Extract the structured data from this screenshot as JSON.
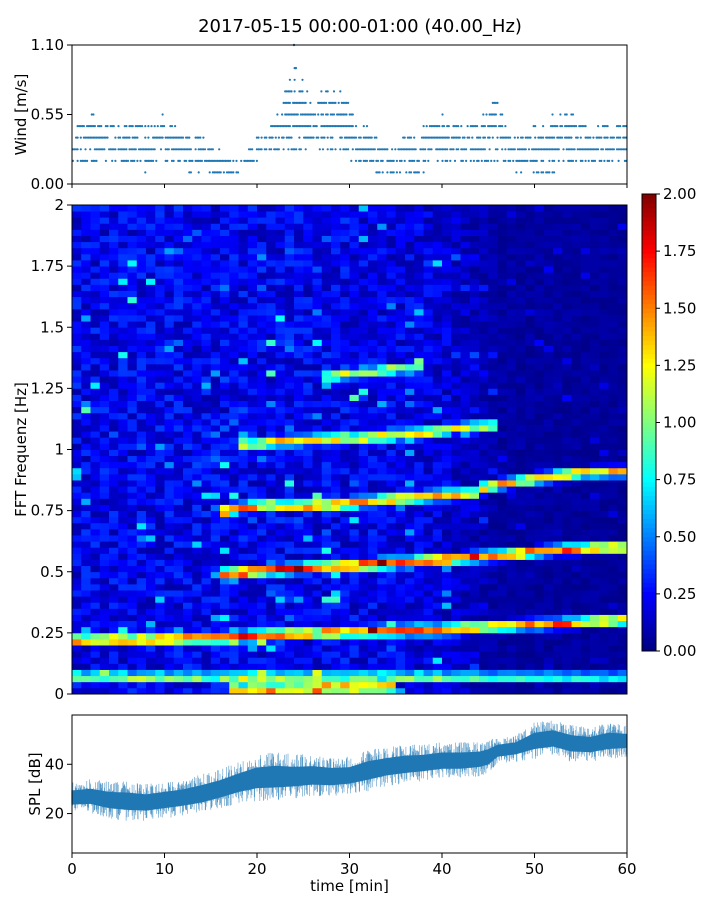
{
  "title": "2017-05-15 00:00-01:00 (40.00_Hz)",
  "chart_data": [
    {
      "type": "scatter",
      "panel": "wind",
      "ylabel": "Wind [m/s]",
      "xlim": [
        0,
        60
      ],
      "ylim": [
        0,
        1.1
      ],
      "yticks": [
        0.0,
        0.55,
        1.1
      ],
      "ytick_labels": [
        "0.00",
        "0.55",
        "1.10"
      ],
      "marker_color": "#1f77b4",
      "levels": [
        0.092,
        0.183,
        0.275,
        0.367,
        0.458,
        0.55,
        0.642,
        0.733,
        0.825,
        0.917,
        1.1
      ],
      "envelope": {
        "t": [
          0,
          2,
          5,
          8,
          10,
          12,
          14,
          16,
          18,
          19,
          20,
          21,
          22,
          23,
          24,
          25,
          26,
          27,
          28,
          29,
          30,
          31,
          32,
          33,
          34,
          36,
          38,
          40,
          42,
          44,
          45,
          46,
          47,
          48,
          50,
          52,
          54,
          56,
          58,
          60
        ],
        "min": [
          0.092,
          0.183,
          0.183,
          0.092,
          0.183,
          0.092,
          0.092,
          0.092,
          0.092,
          0.183,
          0.183,
          0.275,
          0.275,
          0.275,
          0.275,
          0.275,
          0.183,
          0.275,
          0.183,
          0.275,
          0.183,
          0.183,
          0.183,
          0.092,
          0.092,
          0.092,
          0.092,
          0.183,
          0.183,
          0.183,
          0.183,
          0.183,
          0.183,
          0.092,
          0.092,
          0.092,
          0.183,
          0.092,
          0.183,
          0.092
        ],
        "max": [
          0.458,
          0.55,
          0.458,
          0.458,
          0.55,
          0.458,
          0.367,
          0.275,
          0.183,
          0.275,
          0.367,
          0.458,
          0.55,
          0.733,
          0.917,
          0.825,
          0.733,
          0.733,
          0.733,
          0.733,
          0.642,
          0.458,
          0.458,
          0.367,
          0.275,
          0.367,
          0.458,
          0.55,
          0.458,
          0.458,
          0.642,
          0.642,
          0.458,
          0.367,
          0.458,
          0.55,
          0.55,
          0.458,
          0.458,
          0.55
        ]
      },
      "peaks": [
        {
          "x": 24.0,
          "y": 1.1
        },
        {
          "x": 24.2,
          "y": 0.917
        }
      ]
    },
    {
      "type": "heatmap",
      "panel": "spectrogram",
      "ylabel": "FFT Frequenz [Hz]",
      "xlim": [
        0,
        60
      ],
      "ylim": [
        0,
        2
      ],
      "yticks": [
        0,
        0.25,
        0.5,
        0.75,
        1,
        1.25,
        1.5,
        1.75,
        2
      ],
      "ytick_labels": [
        "0",
        "0.25",
        "0.5",
        "0.75",
        "1",
        "1.25",
        "1.5",
        "1.75",
        "2"
      ],
      "colormap": "jet",
      "colorbar": {
        "vmin": 0,
        "vmax": 2,
        "ticks": [
          0,
          0.25,
          0.5,
          0.75,
          1.0,
          1.25,
          1.5,
          1.75,
          2.0
        ],
        "tick_labels": [
          "0.00",
          "0.25",
          "0.50",
          "0.75",
          "1.00",
          "1.25",
          "1.50",
          "1.75",
          "2.00"
        ]
      },
      "time_bins": 60,
      "freq_bins": 80,
      "background": [
        {
          "t": 0,
          "level": 0.22
        },
        {
          "t": 30,
          "level": 0.22
        },
        {
          "t": 40,
          "level": 0.18
        },
        {
          "t": 46,
          "level": 0.07
        },
        {
          "t": 60,
          "level": 0.05
        }
      ],
      "lines": [
        {
          "t": [
            0,
            10,
            20,
            30,
            40,
            47,
            50,
            55,
            60
          ],
          "f": [
            0.22,
            0.225,
            0.24,
            0.255,
            0.265,
            0.28,
            0.285,
            0.295,
            0.305
          ],
          "level": 1.7
        },
        {
          "t": [
            16,
            22,
            30,
            40,
            47,
            52,
            58,
            60
          ],
          "f": [
            0.49,
            0.51,
            0.525,
            0.55,
            0.57,
            0.59,
            0.6,
            0.6
          ],
          "level": 1.8
        },
        {
          "t": [
            16,
            20,
            25,
            30,
            35,
            40,
            44
          ],
          "f": [
            0.75,
            0.77,
            0.77,
            0.78,
            0.8,
            0.815,
            0.82
          ],
          "level": 1.5
        },
        {
          "t": [
            44,
            47,
            50,
            55,
            60
          ],
          "f": [
            0.84,
            0.865,
            0.88,
            0.905,
            0.91
          ],
          "level": 1.6
        },
        {
          "t": [
            18,
            25,
            32,
            38,
            42,
            46
          ],
          "f": [
            1.02,
            1.04,
            1.05,
            1.07,
            1.09,
            1.1
          ],
          "level": 1.3
        },
        {
          "t": [
            27,
            33,
            38
          ],
          "f": [
            1.3,
            1.32,
            1.34
          ],
          "level": 1.0
        },
        {
          "t": [
            0,
            60
          ],
          "f": [
            0.07,
            0.07
          ],
          "level": 1.0
        },
        {
          "t": [
            17,
            35
          ],
          "f": [
            0.02,
            0.03
          ],
          "level": 1.6
        }
      ]
    },
    {
      "type": "area",
      "panel": "spl",
      "xlabel": "time [min]",
      "ylabel": "SPL [dB]",
      "xlim": [
        0,
        60
      ],
      "ylim": [
        4,
        60
      ],
      "xticks": [
        0,
        10,
        20,
        30,
        40,
        50,
        60
      ],
      "yticks": [
        20,
        40
      ],
      "color": "#1f77b4",
      "t": [
        0,
        2,
        4,
        6,
        8,
        10,
        12,
        14,
        16,
        18,
        20,
        22,
        24,
        26,
        28,
        30,
        32,
        34,
        36,
        38,
        40,
        42,
        44,
        45,
        46,
        48,
        50,
        52,
        54,
        56,
        58,
        60
      ],
      "low": [
        20,
        20,
        18,
        17,
        17,
        18,
        19,
        20,
        22,
        24,
        25,
        25,
        26,
        27,
        27,
        28,
        29,
        31,
        32,
        33,
        34,
        34,
        35,
        36,
        40,
        41,
        42,
        43,
        41,
        41,
        42,
        43
      ],
      "high": [
        33,
        34,
        33,
        33,
        32,
        33,
        34,
        36,
        38,
        41,
        44,
        45,
        44,
        44,
        43,
        43,
        46,
        47,
        48,
        48,
        49,
        49,
        49,
        50,
        51,
        52,
        57,
        58,
        56,
        55,
        57,
        56
      ]
    }
  ]
}
